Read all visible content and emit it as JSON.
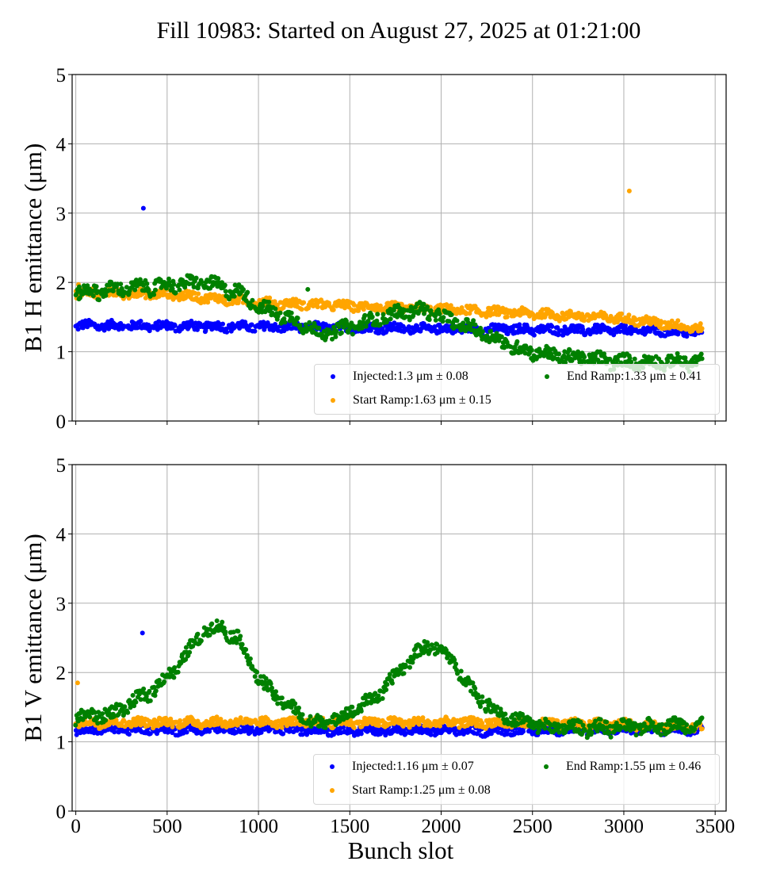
{
  "chart_data": {
    "type": "scatter",
    "title": "Fill 10983: Started on August 27, 2025 at 01:21:00",
    "xlabel": "Bunch slot",
    "xlim": [
      -20,
      3560
    ],
    "xticks": [
      0,
      500,
      1000,
      1500,
      2000,
      2500,
      3000,
      3500
    ],
    "xtick_labels": [
      "0",
      "500",
      "1000",
      "1500",
      "2000",
      "2500",
      "3000",
      "3500"
    ],
    "grid": true,
    "colors": {
      "injected": "#0000ff",
      "start_ramp": "#ffa500",
      "end_ramp": "#008000"
    },
    "panels": [
      {
        "name": "B1 H",
        "ylabel": "B1 H emittance (μm)",
        "ylim": [
          0,
          5
        ],
        "yticks": [
          0,
          1,
          2,
          3,
          4,
          5
        ],
        "legend_position": "lower-right",
        "legend": [
          {
            "key": "injected",
            "label": "Injected:1.3 μm ± 0.08"
          },
          {
            "key": "start_ramp",
            "label": "Start Ramp:1.63 μm ± 0.15"
          },
          {
            "key": "end_ramp",
            "label": "End Ramp:1.33 μm ± 0.41"
          }
        ],
        "series": [
          {
            "key": "injected",
            "name": "Injected",
            "mean": 1.3,
            "std": 0.08,
            "trend": [
              [
                0,
                1.35
              ],
              [
                1000,
                1.33
              ],
              [
                2000,
                1.3
              ],
              [
                3000,
                1.28
              ],
              [
                3430,
                1.25
              ]
            ],
            "outliers": [
              [
                370,
                3.07
              ]
            ]
          },
          {
            "key": "start_ramp",
            "name": "Start Ramp",
            "mean": 1.63,
            "std": 0.15,
            "trend": [
              [
                0,
                1.82
              ],
              [
                500,
                1.8
              ],
              [
                1000,
                1.68
              ],
              [
                1500,
                1.63
              ],
              [
                2000,
                1.58
              ],
              [
                2500,
                1.52
              ],
              [
                3000,
                1.45
              ],
              [
                3430,
                1.3
              ]
            ],
            "outliers": [
              [
                3030,
                3.32
              ],
              [
                15,
                1.97
              ]
            ]
          },
          {
            "key": "end_ramp",
            "name": "End Ramp",
            "mean": 1.33,
            "std": 0.41,
            "trend": [
              [
                0,
                1.8
              ],
              [
                700,
                1.95
              ],
              [
                900,
                1.8
              ],
              [
                1000,
                1.6
              ],
              [
                1200,
                1.4
              ],
              [
                1350,
                1.2
              ],
              [
                1500,
                1.3
              ],
              [
                1750,
                1.5
              ],
              [
                1900,
                1.55
              ],
              [
                2050,
                1.4
              ],
              [
                2250,
                1.2
              ],
              [
                2400,
                1.0
              ],
              [
                2600,
                0.9
              ],
              [
                3000,
                0.8
              ],
              [
                3430,
                0.8
              ]
            ],
            "outliers": [
              [
                1270,
                1.9
              ]
            ]
          }
        ]
      },
      {
        "name": "B1 V",
        "ylabel": "B1 V emittance (μm)",
        "ylim": [
          0,
          5
        ],
        "yticks": [
          0,
          1,
          2,
          3,
          4,
          5
        ],
        "legend_position": "lower-right",
        "legend": [
          {
            "key": "injected",
            "label": "Injected:1.16 μm ± 0.07"
          },
          {
            "key": "start_ramp",
            "label": "Start Ramp:1.25 μm ± 0.08"
          },
          {
            "key": "end_ramp",
            "label": "End Ramp:1.55 μm ± 0.46"
          }
        ],
        "series": [
          {
            "key": "injected",
            "name": "Injected",
            "mean": 1.16,
            "std": 0.07,
            "trend": [
              [
                0,
                1.15
              ],
              [
                1000,
                1.15
              ],
              [
                2000,
                1.13
              ],
              [
                3000,
                1.15
              ],
              [
                3430,
                1.15
              ]
            ],
            "outliers": [
              [
                365,
                2.57
              ]
            ]
          },
          {
            "key": "start_ramp",
            "name": "Start Ramp",
            "mean": 1.25,
            "std": 0.08,
            "trend": [
              [
                0,
                1.25
              ],
              [
                1000,
                1.25
              ],
              [
                2000,
                1.25
              ],
              [
                3000,
                1.22
              ],
              [
                3430,
                1.18
              ]
            ],
            "outliers": [
              [
                10,
                1.85
              ]
            ]
          },
          {
            "key": "end_ramp",
            "name": "End Ramp",
            "mean": 1.55,
            "std": 0.46,
            "trend": [
              [
                0,
                1.3
              ],
              [
                200,
                1.35
              ],
              [
                400,
                1.65
              ],
              [
                550,
                2.0
              ],
              [
                700,
                2.55
              ],
              [
                800,
                2.6
              ],
              [
                900,
                2.4
              ],
              [
                1000,
                1.85
              ],
              [
                1100,
                1.6
              ],
              [
                1300,
                1.2
              ],
              [
                1450,
                1.3
              ],
              [
                1650,
                1.6
              ],
              [
                1850,
                2.2
              ],
              [
                1950,
                2.35
              ],
              [
                2050,
                2.15
              ],
              [
                2200,
                1.6
              ],
              [
                2350,
                1.3
              ],
              [
                2600,
                1.15
              ],
              [
                3000,
                1.15
              ],
              [
                3430,
                1.2
              ]
            ],
            "outliers": []
          }
        ]
      }
    ]
  }
}
